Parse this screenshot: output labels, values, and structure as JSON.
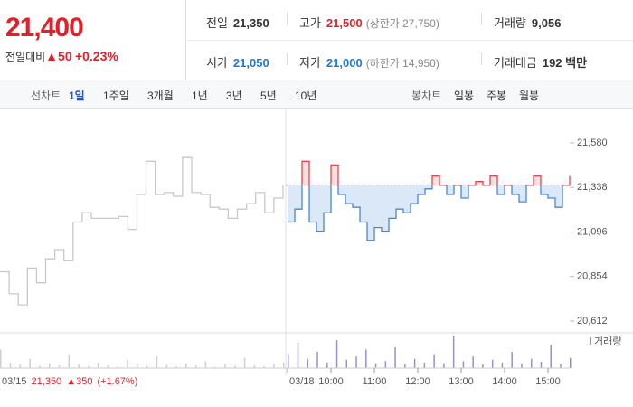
{
  "header": {
    "price": "21,400",
    "change_label": "전일대비",
    "change": "▲50",
    "change_pct": "+0.23%",
    "stats": [
      [
        {
          "label": "전일",
          "value": "21,350"
        },
        {
          "label": "고가",
          "value": "21,500",
          "extra": "(상한가 27,750)"
        },
        {
          "label": "거래량",
          "value": "9,056"
        }
      ],
      [
        {
          "label": "시가",
          "value": "21,050"
        },
        {
          "label": "저가",
          "value": "21,000",
          "extra": "(하한가 14,950)"
        },
        {
          "label": "거래대금",
          "value": "192 백만"
        }
      ]
    ]
  },
  "tabs": {
    "line_label": "선차트",
    "line": [
      "1일",
      "1주일",
      "3개월",
      "1년",
      "3년",
      "5년",
      "10년"
    ],
    "candle_label": "봉차트",
    "candle": [
      "일봉",
      "주봉",
      "월봉"
    ]
  },
  "chart_data": {
    "type": "line",
    "base": 21350,
    "ylim": [
      20558,
      21737
    ],
    "yticks": [
      {
        "value": 21580,
        "label": "21,580"
      },
      {
        "value": 21338,
        "label": "21,338"
      },
      {
        "value": 21096,
        "label": "21,096"
      },
      {
        "value": 20854,
        "label": "20,854"
      },
      {
        "value": 20612,
        "label": "20,612"
      }
    ],
    "xticks": [
      "03/18",
      "10:00",
      "11:00",
      "12:00",
      "13:00",
      "14:00",
      "15:00"
    ],
    "series": [
      {
        "name": "03/15",
        "color": "#c8c8c8",
        "values": [
          20880,
          20760,
          20700,
          20900,
          20820,
          20950,
          21000,
          20940,
          21150,
          21200,
          21170,
          21170,
          21170,
          21180,
          21110,
          21300,
          21480,
          21300,
          21310,
          21290,
          21500,
          21310,
          21300,
          21230,
          21220,
          21170,
          21220,
          21250,
          21310,
          21200,
          21280,
          21350
        ]
      },
      {
        "name": "03/18",
        "color": "#4a86d8",
        "up_color": "#e8424a",
        "values": [
          21150,
          21220,
          21480,
          21150,
          21100,
          21200,
          21460,
          21300,
          21250,
          21230,
          21150,
          21050,
          21120,
          21100,
          21170,
          21220,
          21200,
          21250,
          21300,
          21330,
          21400,
          21350,
          21300,
          21350,
          21280,
          21350,
          21370,
          21350,
          21400,
          21300,
          21350,
          21300,
          21260,
          21350,
          21400,
          21300,
          21280,
          21230,
          21350,
          21400
        ]
      }
    ],
    "volume": {
      "name": "거래량",
      "color": "#9b8fd1",
      "prev_color": "#cfcfcf",
      "series": [
        [
          40,
          12,
          8,
          20,
          5,
          10,
          6,
          30,
          8,
          4,
          12,
          6,
          3,
          18,
          9,
          5,
          25,
          7,
          4,
          10,
          6,
          15,
          3,
          8,
          5,
          22,
          6,
          4,
          9,
          12
        ],
        [
          30,
          55,
          20,
          35,
          12,
          60,
          18,
          25,
          40,
          10,
          15,
          45,
          8,
          20,
          12,
          30,
          10,
          70,
          15,
          25,
          8,
          18,
          12,
          35,
          10,
          20,
          14,
          50,
          9,
          22
        ]
      ]
    },
    "legend_date": "03/15",
    "legend_price": "21,350",
    "legend_change": "▲350",
    "legend_pct": "(+1.67%)"
  }
}
